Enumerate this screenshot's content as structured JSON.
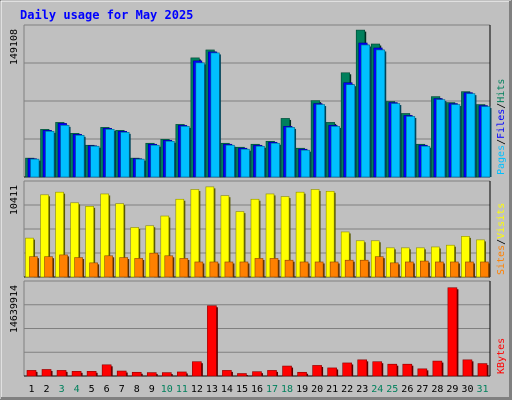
{
  "title": "Daily usage for May 2025",
  "colors": {
    "background": "#c0c0c0",
    "plot": "#c0c0c0",
    "hits": "#00805c",
    "files": "#0000ff",
    "pages": "#00c0ff",
    "visits": "#ffff00",
    "sites": "#ff8000",
    "kbytes": "#ff0000",
    "title": "#0000ff",
    "weekday_label": "#000000",
    "weekend_label": "#00805c"
  },
  "chart_data": [
    {
      "type": "bar",
      "name": "hits-files-pages",
      "title": "Daily usage for May 2025",
      "categories": [
        "1",
        "2",
        "3",
        "4",
        "5",
        "6",
        "7",
        "8",
        "9",
        "10",
        "11",
        "12",
        "13",
        "14",
        "15",
        "16",
        "17",
        "18",
        "19",
        "20",
        "21",
        "22",
        "23",
        "24",
        "25",
        "26",
        "27",
        "28",
        "29",
        "30",
        "31"
      ],
      "weekend_days": [
        "3",
        "4",
        "10",
        "11",
        "17",
        "18",
        "24",
        "25",
        "31"
      ],
      "ymax_label": "149108",
      "ylim": [
        0,
        149108
      ],
      "legend": [
        {
          "label": "Hits",
          "color": "#00805c"
        },
        {
          "label": "Files",
          "color": "#0000ff"
        },
        {
          "label": "Pages",
          "color": "#00c0ff"
        }
      ],
      "separator": "/",
      "series": [
        {
          "name": "Hits",
          "values": [
            19000,
            48000,
            55000,
            44000,
            32000,
            50000,
            47000,
            19000,
            34000,
            38000,
            53000,
            120000,
            128000,
            34000,
            30000,
            33000,
            36000,
            59000,
            29000,
            77000,
            55000,
            105000,
            148000,
            134000,
            76000,
            64000,
            33000,
            81000,
            75000,
            86000,
            73000
          ]
        },
        {
          "name": "Files",
          "values": [
            18500,
            47000,
            54000,
            43000,
            31500,
            49000,
            46000,
            18500,
            33000,
            37000,
            52000,
            117000,
            126000,
            33000,
            29000,
            32000,
            35000,
            51000,
            28000,
            74000,
            52000,
            95000,
            135000,
            130000,
            75000,
            62000,
            32000,
            79000,
            74000,
            85000,
            72000
          ]
        },
        {
          "name": "Pages",
          "values": [
            18000,
            46000,
            52000,
            42000,
            31000,
            48000,
            45000,
            18000,
            32000,
            36000,
            51000,
            115000,
            125000,
            32000,
            28000,
            31000,
            34000,
            50000,
            27000,
            73000,
            51000,
            93000,
            133000,
            128000,
            74000,
            61000,
            31000,
            78000,
            73000,
            84000,
            71000
          ]
        }
      ]
    },
    {
      "type": "bar",
      "name": "visits-sites",
      "categories": [
        "1",
        "2",
        "3",
        "4",
        "5",
        "6",
        "7",
        "8",
        "9",
        "10",
        "11",
        "12",
        "13",
        "14",
        "15",
        "16",
        "17",
        "18",
        "19",
        "20",
        "21",
        "22",
        "23",
        "24",
        "25",
        "26",
        "27",
        "28",
        "29",
        "30",
        "31"
      ],
      "ymax_label": "10411",
      "ylim": [
        0,
        10411
      ],
      "legend": [
        {
          "label": "Visits",
          "color": "#ffff00"
        },
        {
          "label": "Sites",
          "color": "#ff8000"
        }
      ],
      "separator": "/",
      "series": [
        {
          "name": "Visits",
          "values": [
            4400,
            9300,
            9600,
            8400,
            8000,
            9400,
            8300,
            5600,
            5800,
            6900,
            8800,
            9900,
            10200,
            9200,
            7400,
            8800,
            9400,
            9100,
            9600,
            9900,
            9700,
            5100,
            4100,
            4100,
            3300,
            3300,
            3300,
            3400,
            3600,
            4600,
            4200
          ]
        },
        {
          "name": "Sites",
          "values": [
            2300,
            2300,
            2500,
            2200,
            1600,
            2400,
            2200,
            2100,
            2700,
            2400,
            2100,
            1700,
            1700,
            1700,
            1700,
            2100,
            2100,
            1900,
            1700,
            1700,
            1700,
            1900,
            1900,
            2300,
            1600,
            1700,
            1800,
            1700,
            1700,
            1700,
            1700
          ]
        }
      ]
    },
    {
      "type": "bar",
      "name": "kbytes",
      "categories": [
        "1",
        "2",
        "3",
        "4",
        "5",
        "6",
        "7",
        "8",
        "9",
        "10",
        "11",
        "12",
        "13",
        "14",
        "15",
        "16",
        "17",
        "18",
        "19",
        "20",
        "21",
        "22",
        "23",
        "24",
        "25",
        "26",
        "27",
        "28",
        "29",
        "30",
        "31"
      ],
      "ymax_label": "14639914",
      "ylim": [
        0,
        14639914
      ],
      "legend": [
        {
          "label": "KBytes",
          "color": "#ff0000"
        }
      ],
      "series": [
        {
          "name": "KBytes",
          "values": [
            900000,
            1050000,
            900000,
            750000,
            750000,
            1800000,
            800000,
            600000,
            550000,
            550000,
            650000,
            2300000,
            11300000,
            900000,
            400000,
            700000,
            900000,
            1600000,
            600000,
            1700000,
            1300000,
            2100000,
            2600000,
            2300000,
            1900000,
            1900000,
            1150000,
            2400000,
            14200000,
            2600000,
            2000000
          ]
        }
      ]
    }
  ]
}
